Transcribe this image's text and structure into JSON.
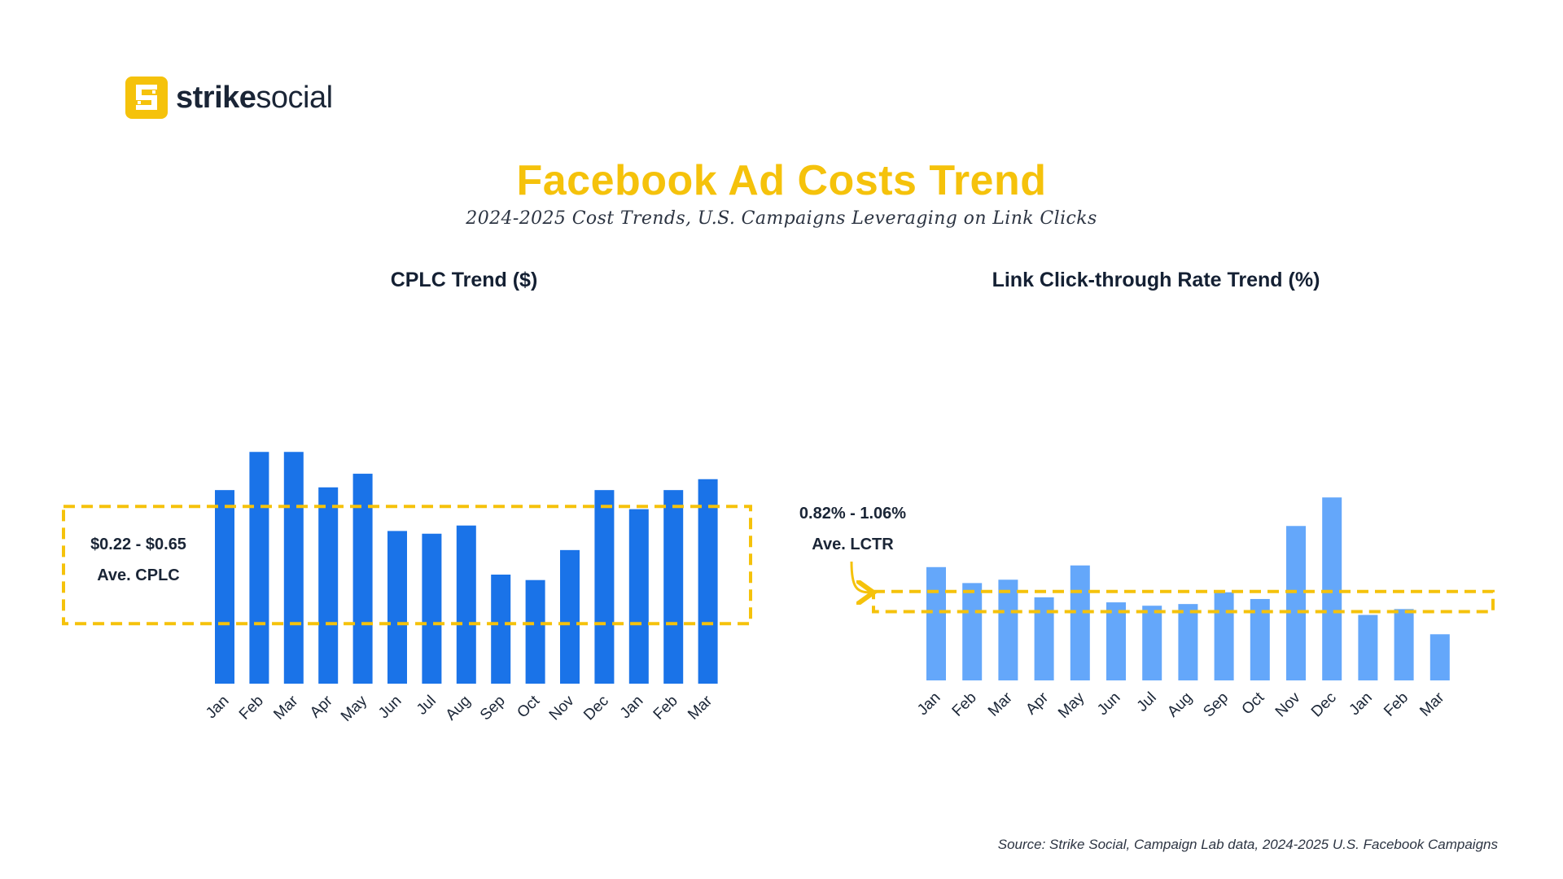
{
  "logo": {
    "brand_bold": "strike",
    "brand_light": "social",
    "color": "#F5C20B"
  },
  "header": {
    "title": "Facebook Ad Costs Trend",
    "subtitle": "2024-2025 Cost Trends, U.S. Campaigns Leveraging on Link Clicks"
  },
  "source": "Source: Strike Social, Campaign Lab data, 2024-2025 U.S. Facebook Campaigns",
  "chart_data": [
    {
      "type": "bar",
      "title": "CPLC Trend ($)",
      "categories": [
        "Jan",
        "Feb",
        "Mar",
        "Apr",
        "May",
        "Jun",
        "Jul",
        "Aug",
        "Sep",
        "Oct",
        "Nov",
        "Dec",
        "Jan",
        "Feb",
        "Mar"
      ],
      "values": [
        0.71,
        0.85,
        0.85,
        0.72,
        0.77,
        0.56,
        0.55,
        0.58,
        0.4,
        0.38,
        0.49,
        0.71,
        0.64,
        0.71,
        0.75
      ],
      "ylim": [
        0,
        1
      ],
      "color": "#1A73E8",
      "grid": false,
      "band": {
        "range": [
          0.22,
          0.65
        ],
        "label_range": "$0.22 - $0.65",
        "label_name": "Ave. CPLC",
        "color": "#F5C20B",
        "style": "dashed"
      }
    },
    {
      "type": "bar",
      "title": "Link Click-through Rate Trend (%)",
      "categories": [
        "Jan",
        "Feb",
        "Mar",
        "Apr",
        "May",
        "Jun",
        "Jul",
        "Aug",
        "Sep",
        "Oct",
        "Nov",
        "Dec",
        "Jan",
        "Feb",
        "Mar"
      ],
      "values": [
        1.35,
        1.16,
        1.2,
        0.99,
        1.37,
        0.93,
        0.89,
        0.91,
        1.05,
        0.97,
        1.84,
        2.18,
        0.78,
        0.85,
        0.55
      ],
      "ylim": [
        0,
        2.5
      ],
      "color": "#64A7FA",
      "grid": false,
      "band": {
        "range": [
          0.82,
          1.06
        ],
        "label_range": "0.82% - 1.06%",
        "label_name": "Ave. LCTR",
        "color": "#F5C20B",
        "style": "dashed"
      }
    }
  ]
}
